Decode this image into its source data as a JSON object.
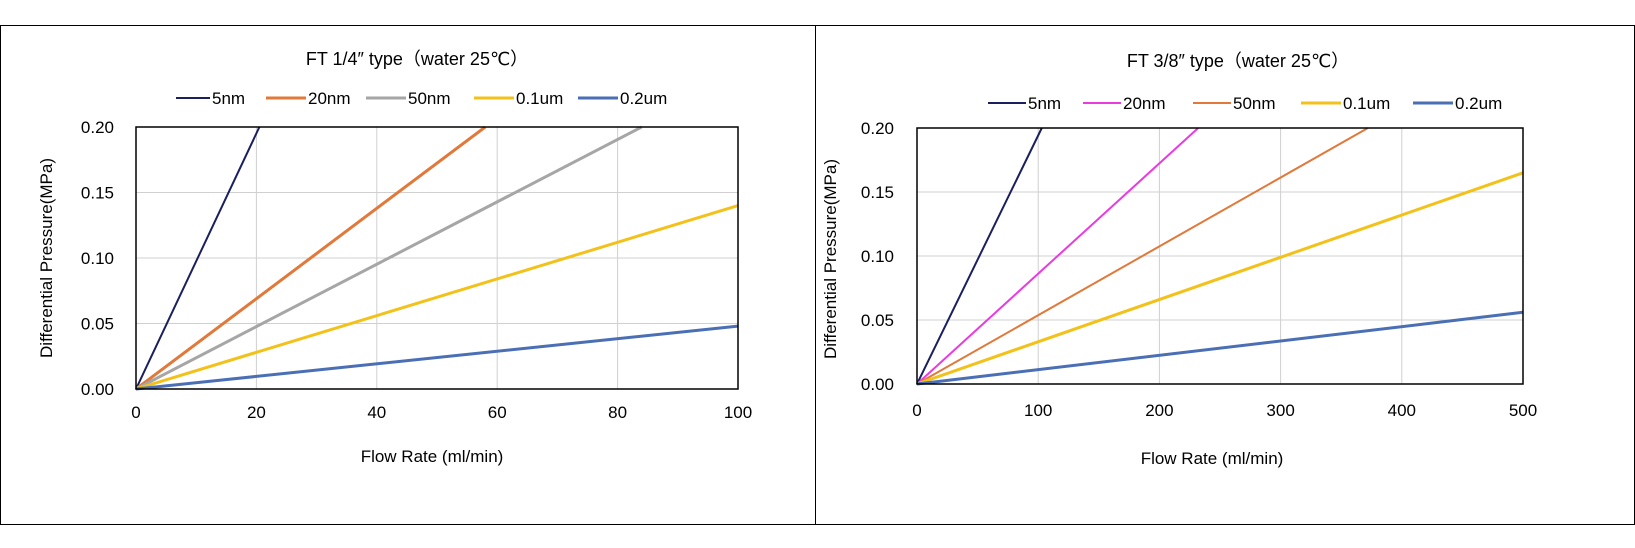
{
  "chart_data": [
    {
      "type": "line",
      "title": "FT 1/4″ type（water 25℃）",
      "xlabel": "Flow Rate (ml/min)",
      "ylabel": "Differential Pressure(MPa)",
      "xlim": [
        0,
        100
      ],
      "ylim": [
        0,
        0.2
      ],
      "x_ticks": [
        "0",
        "20",
        "40",
        "60",
        "80",
        "100"
      ],
      "y_ticks": [
        "0.00",
        "0.05",
        "0.10",
        "0.15",
        "0.20"
      ],
      "grid": true,
      "legend_position": "top",
      "series": [
        {
          "name": "5nm",
          "color": "#1a1f5e",
          "width": 2.0,
          "x": [
            0,
            20.5
          ],
          "y": [
            0,
            0.2
          ]
        },
        {
          "name": "20nm",
          "color": "#e0793a",
          "width": 3.0,
          "x": [
            0,
            58
          ],
          "y": [
            0,
            0.2
          ]
        },
        {
          "name": "50nm",
          "color": "#a6a6a6",
          "width": 3.0,
          "x": [
            0,
            84
          ],
          "y": [
            0,
            0.2
          ]
        },
        {
          "name": "0.1um",
          "color": "#f2c21b",
          "width": 3.0,
          "x": [
            0,
            100
          ],
          "y": [
            0,
            0.14
          ]
        },
        {
          "name": "0.2um",
          "color": "#4a6fb5",
          "width": 3.0,
          "x": [
            0,
            100
          ],
          "y": [
            0,
            0.048
          ]
        }
      ]
    },
    {
      "type": "line",
      "title": "FT 3/8″ type（water 25℃）",
      "xlabel": "Flow Rate (ml/min)",
      "ylabel": "Differential Pressure(MPa)",
      "xlim": [
        0,
        500
      ],
      "ylim": [
        0,
        0.2
      ],
      "x_ticks": [
        "0",
        "100",
        "200",
        "300",
        "400",
        "500"
      ],
      "y_ticks": [
        "0.00",
        "0.05",
        "0.10",
        "0.15",
        "0.20"
      ],
      "grid": true,
      "legend_position": "top",
      "series": [
        {
          "name": "5nm",
          "color": "#1a1f5e",
          "width": 2.0,
          "x": [
            0,
            103
          ],
          "y": [
            0,
            0.2
          ]
        },
        {
          "name": "20nm",
          "color": "#e83be0",
          "width": 2.0,
          "x": [
            0,
            232
          ],
          "y": [
            0,
            0.2
          ]
        },
        {
          "name": "50nm",
          "color": "#e0793a",
          "width": 2.0,
          "x": [
            0,
            372
          ],
          "y": [
            0,
            0.2
          ]
        },
        {
          "name": "0.1um",
          "color": "#f2c21b",
          "width": 3.0,
          "x": [
            0,
            500
          ],
          "y": [
            0,
            0.165
          ]
        },
        {
          "name": "0.2um",
          "color": "#4a6fb5",
          "width": 3.0,
          "x": [
            0,
            500
          ],
          "y": [
            0,
            0.056
          ]
        }
      ]
    }
  ]
}
